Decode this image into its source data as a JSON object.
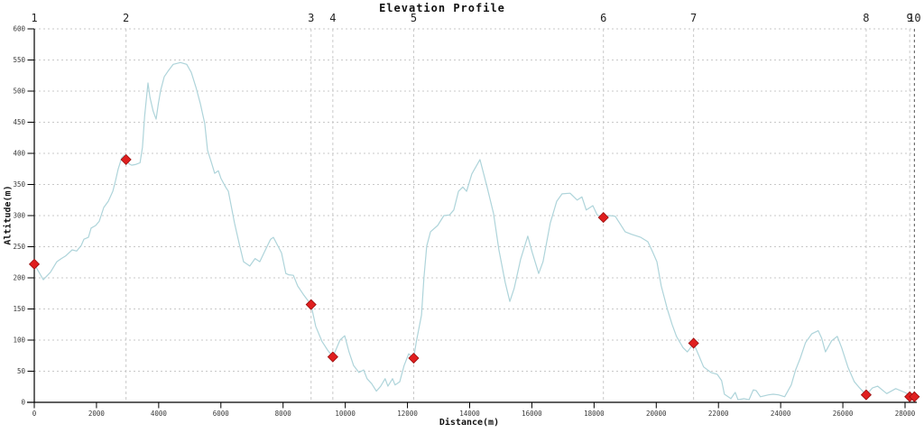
{
  "chart_data": {
    "type": "line",
    "title": "Elevation Profile",
    "xlabel": "Distance(m)",
    "ylabel": "Altitude(m)",
    "xlim": [
      0,
      28300
    ],
    "ylim": [
      0,
      600
    ],
    "x_ticks": [
      0,
      2000,
      4000,
      6000,
      8000,
      10000,
      12000,
      14000,
      16000,
      18000,
      20000,
      22000,
      24000,
      26000,
      28000
    ],
    "y_ticks": [
      0,
      50,
      100,
      150,
      200,
      250,
      300,
      350,
      400,
      450,
      500,
      550,
      600
    ],
    "grid": true,
    "legend": "none",
    "line_color": "#aed4da",
    "marker_color": "#e01f1f",
    "marker_edge_color": "#991010",
    "grid_color": "#c9c9c9",
    "waypoint_edge_grid_color": "#555555",
    "axis_color": "#000000",
    "waypoints": [
      {
        "label": "1",
        "distance_m": 0,
        "altitude_m": 222
      },
      {
        "label": "2",
        "distance_m": 2950,
        "altitude_m": 390
      },
      {
        "label": "3",
        "distance_m": 8900,
        "altitude_m": 157
      },
      {
        "label": "4",
        "distance_m": 9600,
        "altitude_m": 73
      },
      {
        "label": "5",
        "distance_m": 12200,
        "altitude_m": 71
      },
      {
        "label": "6",
        "distance_m": 18300,
        "altitude_m": 297
      },
      {
        "label": "7",
        "distance_m": 21200,
        "altitude_m": 95
      },
      {
        "label": "8",
        "distance_m": 26750,
        "altitude_m": 12
      },
      {
        "label": "9",
        "distance_m": 28150,
        "altitude_m": 9
      },
      {
        "label": "10",
        "distance_m": 28300,
        "altitude_m": 9
      }
    ],
    "profile": [
      [
        0,
        222
      ],
      [
        290,
        197
      ],
      [
        520,
        209
      ],
      [
        725,
        226
      ],
      [
        870,
        231
      ],
      [
        1000,
        235
      ],
      [
        1218,
        245
      ],
      [
        1363,
        243
      ],
      [
        1508,
        252
      ],
      [
        1595,
        262
      ],
      [
        1740,
        265
      ],
      [
        1827,
        280
      ],
      [
        1972,
        284
      ],
      [
        2088,
        291
      ],
      [
        2233,
        313
      ],
      [
        2378,
        323
      ],
      [
        2523,
        339
      ],
      [
        2610,
        356
      ],
      [
        2697,
        375
      ],
      [
        2813,
        393
      ],
      [
        2900,
        397
      ],
      [
        2958,
        390
      ],
      [
        3050,
        383
      ],
      [
        3130,
        381
      ],
      [
        3250,
        382
      ],
      [
        3400,
        385
      ],
      [
        3480,
        410
      ],
      [
        3550,
        460
      ],
      [
        3655,
        513
      ],
      [
        3720,
        490
      ],
      [
        3820,
        468
      ],
      [
        3916,
        455
      ],
      [
        3990,
        480
      ],
      [
        4061,
        501
      ],
      [
        4177,
        523
      ],
      [
        4300,
        532
      ],
      [
        4467,
        543
      ],
      [
        4700,
        546
      ],
      [
        4902,
        543
      ],
      [
        5050,
        530
      ],
      [
        5200,
        506
      ],
      [
        5340,
        480
      ],
      [
        5480,
        448
      ],
      [
        5570,
        405
      ],
      [
        5700,
        385
      ],
      [
        5800,
        368
      ],
      [
        5920,
        372
      ],
      [
        6000,
        360
      ],
      [
        6150,
        346
      ],
      [
        6240,
        339
      ],
      [
        6440,
        288
      ],
      [
        6590,
        255
      ],
      [
        6730,
        226
      ],
      [
        6930,
        219
      ],
      [
        7100,
        231
      ],
      [
        7250,
        226
      ],
      [
        7450,
        247
      ],
      [
        7600,
        262
      ],
      [
        7690,
        265
      ],
      [
        7950,
        240
      ],
      [
        8090,
        207
      ],
      [
        8180,
        205
      ],
      [
        8330,
        204
      ],
      [
        8470,
        187
      ],
      [
        8670,
        172
      ],
      [
        8900,
        157
      ],
      [
        9050,
        122
      ],
      [
        9250,
        98
      ],
      [
        9430,
        84
      ],
      [
        9600,
        73
      ],
      [
        9830,
        100
      ],
      [
        9980,
        107
      ],
      [
        10120,
        81
      ],
      [
        10270,
        59
      ],
      [
        10440,
        48
      ],
      [
        10590,
        52
      ],
      [
        10700,
        38
      ],
      [
        10850,
        30
      ],
      [
        11000,
        18
      ],
      [
        11140,
        26
      ],
      [
        11280,
        38
      ],
      [
        11370,
        26
      ],
      [
        11520,
        38
      ],
      [
        11600,
        28
      ],
      [
        11750,
        33
      ],
      [
        11890,
        59
      ],
      [
        12040,
        78
      ],
      [
        12200,
        71
      ],
      [
        12280,
        96
      ],
      [
        12450,
        140
      ],
      [
        12530,
        200
      ],
      [
        12620,
        251
      ],
      [
        12740,
        274
      ],
      [
        12970,
        284
      ],
      [
        13170,
        300
      ],
      [
        13350,
        301
      ],
      [
        13490,
        309
      ],
      [
        13640,
        339
      ],
      [
        13780,
        346
      ],
      [
        13900,
        339
      ],
      [
        14070,
        367
      ],
      [
        14330,
        390
      ],
      [
        14560,
        346
      ],
      [
        14770,
        303
      ],
      [
        14940,
        245
      ],
      [
        15140,
        193
      ],
      [
        15290,
        162
      ],
      [
        15430,
        183
      ],
      [
        15640,
        230
      ],
      [
        15870,
        267
      ],
      [
        16010,
        241
      ],
      [
        16220,
        207
      ],
      [
        16360,
        226
      ],
      [
        16590,
        288
      ],
      [
        16800,
        323
      ],
      [
        16970,
        335
      ],
      [
        17230,
        336
      ],
      [
        17460,
        325
      ],
      [
        17610,
        330
      ],
      [
        17750,
        309
      ],
      [
        17960,
        316
      ],
      [
        18100,
        301
      ],
      [
        18300,
        297
      ],
      [
        18500,
        300
      ],
      [
        18680,
        299
      ],
      [
        19000,
        274
      ],
      [
        19200,
        270
      ],
      [
        19500,
        265
      ],
      [
        19730,
        258
      ],
      [
        19870,
        243
      ],
      [
        20020,
        226
      ],
      [
        20160,
        187
      ],
      [
        20360,
        149
      ],
      [
        20510,
        125
      ],
      [
        20650,
        106
      ],
      [
        20860,
        88
      ],
      [
        21000,
        81
      ],
      [
        21150,
        91
      ],
      [
        21200,
        95
      ],
      [
        21380,
        74
      ],
      [
        21520,
        57
      ],
      [
        21760,
        48
      ],
      [
        21960,
        45
      ],
      [
        22100,
        35
      ],
      [
        22190,
        13
      ],
      [
        22400,
        6
      ],
      [
        22540,
        16
      ],
      [
        22630,
        4
      ],
      [
        22830,
        6
      ],
      [
        22980,
        4
      ],
      [
        23120,
        20
      ],
      [
        23210,
        19
      ],
      [
        23350,
        9
      ],
      [
        23610,
        12
      ],
      [
        23760,
        13
      ],
      [
        23930,
        12
      ],
      [
        24130,
        9
      ],
      [
        24340,
        28
      ],
      [
        24480,
        52
      ],
      [
        24630,
        71
      ],
      [
        24800,
        96
      ],
      [
        25000,
        110
      ],
      [
        25210,
        115
      ],
      [
        25320,
        103
      ],
      [
        25440,
        81
      ],
      [
        25640,
        99
      ],
      [
        25820,
        106
      ],
      [
        25960,
        88
      ],
      [
        26160,
        57
      ],
      [
        26370,
        33
      ],
      [
        26540,
        23
      ],
      [
        26750,
        12
      ],
      [
        26950,
        23
      ],
      [
        27120,
        26
      ],
      [
        27410,
        14
      ],
      [
        27700,
        22
      ],
      [
        27990,
        16
      ],
      [
        28250,
        9
      ]
    ]
  }
}
